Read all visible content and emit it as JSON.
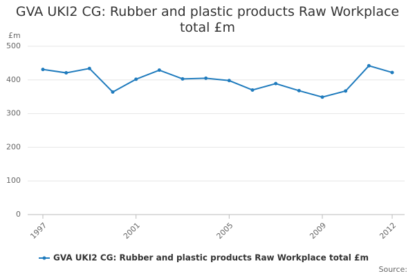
{
  "chart_data": {
    "type": "line",
    "title": "GVA UKI2 CG: Rubber and plastic products Raw Workplace total £m",
    "y_label": "£m",
    "x": [
      1997,
      1998,
      1999,
      2000,
      2001,
      2002,
      2003,
      2004,
      2005,
      2006,
      2007,
      2008,
      2009,
      2010,
      2011,
      2012
    ],
    "series": [
      {
        "name": "GVA UKI2 CG: Rubber and plastic products Raw Workplace total £m",
        "color": "#1f7bbd",
        "values": [
          431,
          421,
          434,
          364,
          402,
          429,
          403,
          405,
          398,
          370,
          389,
          368,
          349,
          367,
          442,
          422
        ]
      }
    ],
    "xlim": [
      1997,
      2012
    ],
    "xticks": [
      1997,
      2001,
      2005,
      2009,
      2012
    ],
    "ylim": [
      0,
      500
    ],
    "yticks": [
      0,
      100,
      200,
      300,
      400,
      500
    ],
    "grid": true,
    "legend": "bottom",
    "source": "Source:"
  }
}
